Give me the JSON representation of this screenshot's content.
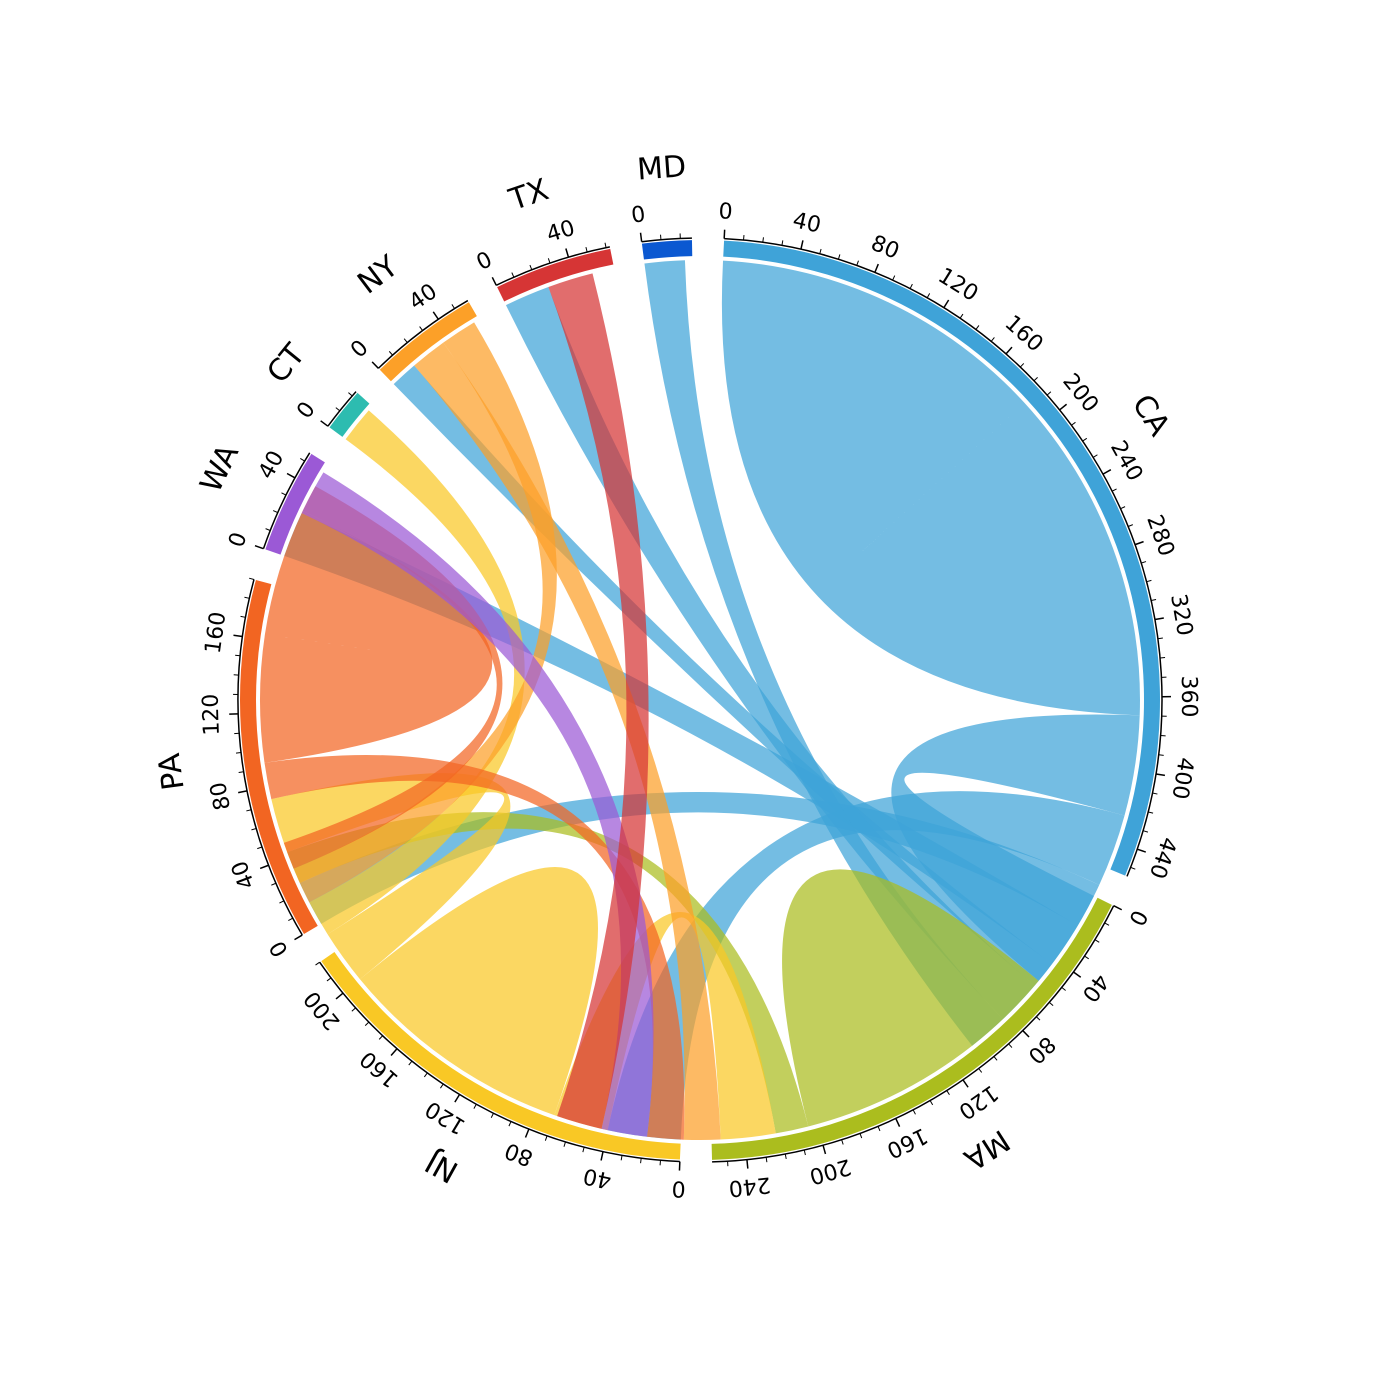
{
  "chart_data": {
    "type": "chord",
    "sectors": [
      {
        "name": "CA",
        "size": 455,
        "color": "#3fa3d8",
        "major_tick": 40
      },
      {
        "name": "MA",
        "size": 258,
        "color": "#abbd1e",
        "major_tick": 40
      },
      {
        "name": "NJ",
        "size": 220,
        "color": "#f9c825",
        "major_tick": 40
      },
      {
        "name": "PA",
        "size": 190,
        "color": "#f26522",
        "major_tick": 40
      },
      {
        "name": "WA",
        "size": 55,
        "color": "#9b59d6",
        "major_tick": 40
      },
      {
        "name": "CT",
        "size": 23,
        "color": "#2dbcb0",
        "major_tick": 40
      },
      {
        "name": "NY",
        "size": 58,
        "color": "#fca028",
        "major_tick": 40
      },
      {
        "name": "TX",
        "size": 62,
        "color": "#d63535",
        "major_tick": 40
      },
      {
        "name": "MD",
        "size": 26,
        "color": "#0b58d1",
        "major_tick": 40
      }
    ],
    "links": [
      {
        "source": "CA",
        "target": "CA",
        "value": 185
      },
      {
        "source": "CA",
        "target": "MA",
        "value": 55
      },
      {
        "source": "CA",
        "target": "NJ",
        "value": 40
      },
      {
        "source": "CA",
        "target": "PA",
        "value": 25
      },
      {
        "source": "CA",
        "target": "WA",
        "value": 25
      },
      {
        "source": "CA",
        "target": "NY",
        "value": 15
      },
      {
        "source": "CA",
        "target": "TX",
        "value": 25
      },
      {
        "source": "CA",
        "target": "MD",
        "value": 22
      },
      {
        "source": "MA",
        "target": "MA",
        "value": 75
      },
      {
        "source": "MA",
        "target": "PA",
        "value": 18
      },
      {
        "source": "NJ",
        "target": "MA",
        "value": 30
      },
      {
        "source": "NJ",
        "target": "NJ",
        "value": 65
      },
      {
        "source": "NJ",
        "target": "PA",
        "value": 30
      },
      {
        "source": "NJ",
        "target": "CT",
        "value": 20
      },
      {
        "source": "NY",
        "target": "MA",
        "value": 20
      },
      {
        "source": "NY",
        "target": "NJ",
        "value": 20
      },
      {
        "source": "PA",
        "target": "MA",
        "value": 20
      },
      {
        "source": "PA",
        "target": "PA",
        "value": 70
      },
      {
        "source": "PA",
        "target": "NJ",
        "value": 15
      },
      {
        "source": "WA",
        "target": "MA",
        "value": 25
      },
      {
        "source": "TX",
        "target": "MA",
        "value": 25
      }
    ]
  }
}
